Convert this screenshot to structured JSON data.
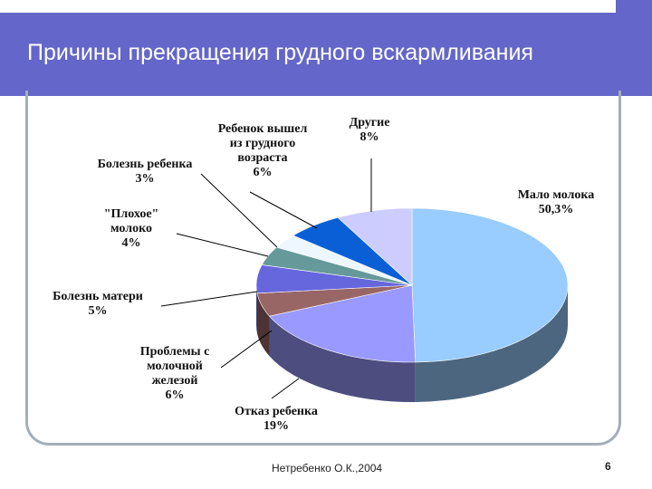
{
  "slide": {
    "title": "Причины прекращения грудного вскармливания",
    "source": "Нетребенко О.К.,2004",
    "page_number": "6"
  },
  "chart_data": {
    "type": "pie",
    "title": "",
    "slices": [
      {
        "label_lines": [
          "Мало молока",
          "50,3%"
        ],
        "value": 50.3,
        "color": "#99ccff"
      },
      {
        "label_lines": [
          "Отказ ребенка",
          "19%"
        ],
        "value": 19,
        "color": "#9999ff"
      },
      {
        "label_lines": [
          "Болезнь матери",
          "5%"
        ],
        "value": 5,
        "color": "#996666"
      },
      {
        "label_lines": [
          "Проблемы с",
          "молочной",
          "железой",
          "6%"
        ],
        "value": 6,
        "color": "#6666dd"
      },
      {
        "label_lines": [
          "\"Плохое\"",
          "молоко",
          "4%"
        ],
        "value": 4,
        "color": "#669999"
      },
      {
        "label_lines": [
          "Болезнь ребенка",
          "3%"
        ],
        "value": 3,
        "color": "#eef6ff"
      },
      {
        "label_lines": [
          "Ребенок вышел",
          "из грудного",
          "возраста",
          "6%"
        ],
        "value": 6,
        "color": "#0a5fd6"
      },
      {
        "label_lines": [
          "Другие",
          "8%"
        ],
        "value": 8,
        "color": "#ccccff"
      }
    ]
  }
}
